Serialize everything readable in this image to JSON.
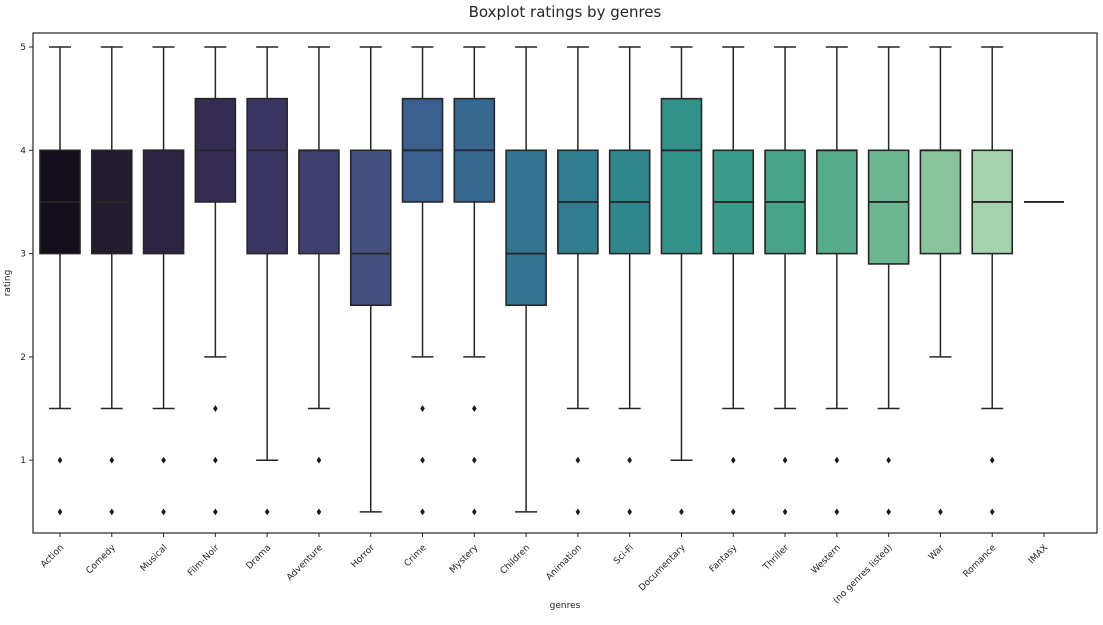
{
  "figure": {
    "title": "Boxplot ratings by genres",
    "xlabel": "genres",
    "ylabel": "rating"
  },
  "style": {
    "background": "#ffffff",
    "spine_color": "#262626",
    "line_color": "#262626",
    "flier_color": "#1a1a1a",
    "text_color": "#262626",
    "palette_name": "mako"
  },
  "chart_data": {
    "type": "boxplot",
    "title": "Boxplot ratings by genres",
    "xlabel": "genres",
    "ylabel": "rating",
    "ylim": [
      0.29,
      5.14
    ],
    "yticks": [
      1,
      2,
      3,
      4,
      5
    ],
    "grid": false,
    "legend": "none",
    "categories": [
      "Action",
      "Comedy",
      "Musical",
      "Film-Noir",
      "Drama",
      "Adventure",
      "Horror",
      "Crime",
      "Mystery",
      "Children",
      "Animation",
      "Sci-Fi",
      "Documentary",
      "Fantasy",
      "Thriller",
      "Western",
      "(no genres listed)",
      "War",
      "Romance",
      "IMAX"
    ],
    "boxes": [
      {
        "genre": "Action",
        "whisker_low": 1.5,
        "q1": 3.0,
        "median": 3.5,
        "q3": 4.0,
        "whisker_high": 5.0,
        "outliers": [
          1.0,
          0.5
        ],
        "color": "#130e19"
      },
      {
        "genre": "Comedy",
        "whisker_low": 1.5,
        "q1": 3.0,
        "median": 3.5,
        "q3": 4.0,
        "whisker_high": 5.0,
        "outliers": [
          1.0,
          0.5
        ],
        "color": "#221c2d"
      },
      {
        "genre": "Musical",
        "whisker_low": 1.5,
        "q1": 3.0,
        "median": 4.0,
        "q3": 4.0,
        "whisker_high": 5.0,
        "outliers": [
          1.0,
          0.5
        ],
        "color": "#2c2341"
      },
      {
        "genre": "Film-Noir",
        "whisker_low": 2.0,
        "q1": 3.5,
        "median": 4.0,
        "q3": 4.5,
        "whisker_high": 5.0,
        "outliers": [
          1.5,
          1.0,
          0.5
        ],
        "color": "#342c52"
      },
      {
        "genre": "Drama",
        "whisker_low": 1.0,
        "q1": 3.0,
        "median": 4.0,
        "q3": 4.5,
        "whisker_high": 5.0,
        "outliers": [
          0.5
        ],
        "color": "#3a3560"
      },
      {
        "genre": "Adventure",
        "whisker_low": 1.5,
        "q1": 3.0,
        "median": 4.0,
        "q3": 4.0,
        "whisker_high": 5.0,
        "outliers": [
          1.0,
          0.5
        ],
        "color": "#3f3f6d"
      },
      {
        "genre": "Horror",
        "whisker_low": 0.5,
        "q1": 2.5,
        "median": 3.0,
        "q3": 4.0,
        "whisker_high": 5.0,
        "outliers": [],
        "color": "#43507d"
      },
      {
        "genre": "Crime",
        "whisker_low": 2.0,
        "q1": 3.5,
        "median": 4.0,
        "q3": 4.5,
        "whisker_high": 5.0,
        "outliers": [
          1.5,
          1.0,
          0.5
        ],
        "color": "#3c5f8d"
      },
      {
        "genre": "Mystery",
        "whisker_low": 2.0,
        "q1": 3.5,
        "median": 4.0,
        "q3": 4.5,
        "whisker_high": 5.0,
        "outliers": [
          1.5,
          1.0,
          0.5
        ],
        "color": "#38688f"
      },
      {
        "genre": "Children",
        "whisker_low": 0.5,
        "q1": 2.5,
        "median": 3.0,
        "q3": 4.0,
        "whisker_high": 5.0,
        "outliers": [],
        "color": "#347390"
      },
      {
        "genre": "Animation",
        "whisker_low": 1.5,
        "q1": 3.0,
        "median": 3.5,
        "q3": 4.0,
        "whisker_high": 5.0,
        "outliers": [
          1.0,
          0.5
        ],
        "color": "#317d8e"
      },
      {
        "genre": "Sci-Fi",
        "whisker_low": 1.5,
        "q1": 3.0,
        "median": 3.5,
        "q3": 4.0,
        "whisker_high": 5.0,
        "outliers": [
          1.0,
          0.5
        ],
        "color": "#30878c"
      },
      {
        "genre": "Documentary",
        "whisker_low": 1.0,
        "q1": 3.0,
        "median": 4.0,
        "q3": 4.5,
        "whisker_high": 5.0,
        "outliers": [
          0.5
        ],
        "color": "#329189"
      },
      {
        "genre": "Fantasy",
        "whisker_low": 1.5,
        "q1": 3.0,
        "median": 3.5,
        "q3": 4.0,
        "whisker_high": 5.0,
        "outliers": [
          1.0,
          0.5
        ],
        "color": "#3a9b89"
      },
      {
        "genre": "Thriller",
        "whisker_low": 1.5,
        "q1": 3.0,
        "median": 3.5,
        "q3": 4.0,
        "whisker_high": 5.0,
        "outliers": [
          1.0,
          0.5
        ],
        "color": "#47a489"
      },
      {
        "genre": "Western",
        "whisker_low": 1.5,
        "q1": 3.0,
        "median": 4.0,
        "q3": 4.0,
        "whisker_high": 5.0,
        "outliers": [
          1.0,
          0.5
        ],
        "color": "#57ad8b"
      },
      {
        "genre": "(no genres listed)",
        "whisker_low": 1.5,
        "q1": 2.9,
        "median": 3.5,
        "q3": 4.0,
        "whisker_high": 5.0,
        "outliers": [
          1.0,
          0.5
        ],
        "color": "#6db691"
      },
      {
        "genre": "War",
        "whisker_low": 2.0,
        "q1": 3.0,
        "median": 4.0,
        "q3": 4.0,
        "whisker_high": 5.0,
        "outliers": [
          0.5
        ],
        "color": "#8ac49d"
      },
      {
        "genre": "Romance",
        "whisker_low": 1.5,
        "q1": 3.0,
        "median": 3.5,
        "q3": 4.0,
        "whisker_high": 5.0,
        "outliers": [
          1.0,
          0.5
        ],
        "color": "#a6d2ae"
      },
      {
        "genre": "IMAX",
        "whisker_low": 3.5,
        "q1": 3.5,
        "median": 3.5,
        "q3": 3.5,
        "whisker_high": 3.5,
        "outliers": [],
        "color": "#c4e2c0"
      }
    ]
  }
}
